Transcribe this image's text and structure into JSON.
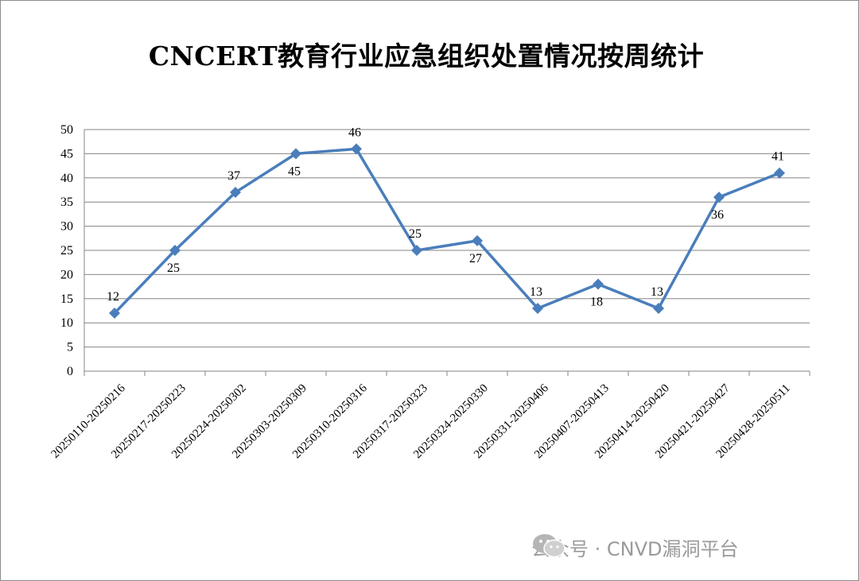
{
  "chart_data": {
    "type": "line",
    "title": "CNCERT教育行业应急组织处置情况按周统计",
    "categories": [
      "20250110-20250216",
      "20250217-20250223",
      "20250224-20250302",
      "20250303-20250309",
      "20250310-20250316",
      "20250317-20250323",
      "20250324-20250330",
      "20250331-20250406",
      "20250407-20250413",
      "20250414-20250420",
      "20250421-20250427",
      "20250428-20250511"
    ],
    "values": [
      12,
      25,
      37,
      45,
      46,
      25,
      27,
      13,
      18,
      13,
      36,
      41
    ],
    "label_positions": [
      "above",
      "below",
      "above",
      "below",
      "above",
      "above",
      "below",
      "above",
      "below",
      "above",
      "below",
      "above"
    ],
    "ylim": [
      0,
      50
    ],
    "yticks": [
      "0",
      "5",
      "10",
      "15",
      "20",
      "25",
      "30",
      "35",
      "40",
      "45",
      "50"
    ],
    "grid": true,
    "line_color": "#4a7ebb",
    "marker": "diamond"
  },
  "watermark": {
    "icon": "wechat-icon",
    "text": "公众号 · CNVD漏洞平台"
  }
}
